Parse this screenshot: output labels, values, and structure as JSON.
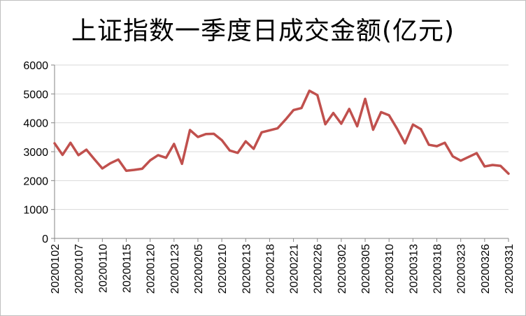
{
  "chart_data": {
    "type": "line",
    "title": "上证指数一季度日成交金额(亿元)",
    "xlabel": "",
    "ylabel": "",
    "ylim": [
      0,
      6000
    ],
    "yticks": [
      0,
      1000,
      2000,
      3000,
      4000,
      5000,
      6000
    ],
    "grid": true,
    "legend": "none",
    "series_color": "#c0504d",
    "x": [
      "20200102",
      "20200103",
      "20200106",
      "20200107",
      "20200108",
      "20200109",
      "20200110",
      "20200113",
      "20200114",
      "20200115",
      "20200116",
      "20200117",
      "20200120",
      "20200121",
      "20200122",
      "20200123",
      "20200203",
      "20200204",
      "20200205",
      "20200206",
      "20200207",
      "20200210",
      "20200211",
      "20200212",
      "20200213",
      "20200214",
      "20200217",
      "20200218",
      "20200219",
      "20200220",
      "20200221",
      "20200224",
      "20200225",
      "20200226",
      "20200227",
      "20200228",
      "20200302",
      "20200303",
      "20200304",
      "20200305",
      "20200306",
      "20200309",
      "20200310",
      "20200311",
      "20200312",
      "20200313",
      "20200316",
      "20200317",
      "20200318",
      "20200319",
      "20200320",
      "20200323",
      "20200324",
      "20200325",
      "20200326",
      "20200327",
      "20200330",
      "20200331"
    ],
    "x_tick_labels": [
      "20200102",
      "20200107",
      "20200110",
      "20200115",
      "20200120",
      "20200123",
      "20200205",
      "20200210",
      "20200213",
      "20200218",
      "20200221",
      "20200226",
      "20200302",
      "20200305",
      "20200310",
      "20200313",
      "20200318",
      "20200323",
      "20200326",
      "20200331"
    ],
    "values": [
      3290,
      2890,
      3310,
      2880,
      3070,
      2740,
      2420,
      2600,
      2730,
      2340,
      2370,
      2410,
      2700,
      2880,
      2790,
      3270,
      2580,
      3750,
      3510,
      3610,
      3620,
      3400,
      3040,
      2960,
      3360,
      3100,
      3670,
      3740,
      3810,
      4110,
      4440,
      4510,
      5110,
      4960,
      3950,
      4340,
      3970,
      4480,
      3880,
      4830,
      3760,
      4370,
      4260,
      3800,
      3290,
      3940,
      3780,
      3240,
      3190,
      3310,
      2840,
      2690,
      2820,
      2950,
      2490,
      2540,
      2510,
      2240
    ]
  }
}
